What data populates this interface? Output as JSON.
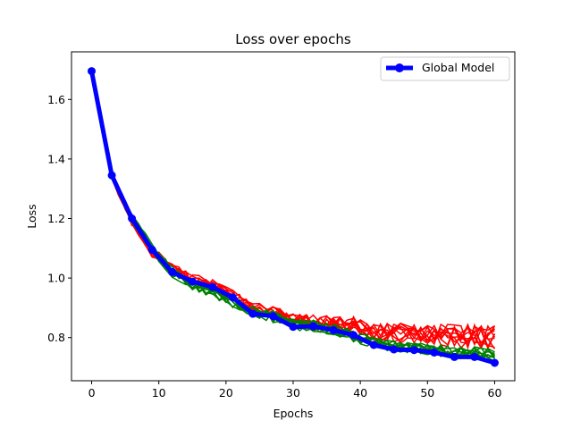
{
  "chart_data": {
    "type": "line",
    "title": "Loss over epochs",
    "xlabel": "Epochs",
    "ylabel": "Loss",
    "xlim": [
      -3,
      63
    ],
    "ylim": [
      0.655,
      1.76
    ],
    "xticks": [
      0,
      10,
      20,
      30,
      40,
      50,
      60
    ],
    "yticks": [
      0.8,
      1.0,
      1.2,
      1.4,
      1.6
    ],
    "ytick_labels": [
      "0.8",
      "1.0",
      "1.2",
      "1.4",
      "1.6"
    ],
    "grid": false,
    "legend": {
      "placement": "top-right",
      "entries": [
        "Global Model"
      ]
    },
    "colors": {
      "global": "#0000ff",
      "clients_a": "#ff0000",
      "clients_b": "#008000"
    },
    "series": [
      {
        "name": "Global Model",
        "color": "#0000ff",
        "marker": "circle",
        "x": [
          0,
          3,
          6,
          9,
          12,
          15,
          18,
          21,
          24,
          27,
          30,
          33,
          36,
          39,
          42,
          45,
          48,
          51,
          54,
          57,
          60
        ],
        "values": [
          1.695,
          1.345,
          1.2,
          1.095,
          1.02,
          0.988,
          0.97,
          0.935,
          0.88,
          0.872,
          0.836,
          0.838,
          0.825,
          0.808,
          0.775,
          0.76,
          0.758,
          0.75,
          0.735,
          0.735,
          0.715
        ]
      }
    ],
    "client_series": [
      {
        "group": "red",
        "color": "#ff0000",
        "count": 10,
        "x": [
          0,
          3,
          6,
          9,
          12,
          15,
          18,
          21,
          24,
          27,
          30,
          33,
          36,
          39,
          42,
          45,
          48,
          51,
          54,
          57,
          60
        ],
        "mean": [
          1.695,
          1.34,
          1.19,
          1.09,
          1.03,
          0.995,
          0.975,
          0.94,
          0.9,
          0.885,
          0.86,
          0.855,
          0.845,
          0.84,
          0.82,
          0.815,
          0.81,
          0.81,
          0.805,
          0.805,
          0.8
        ],
        "spread": [
          0.0,
          0.01,
          0.015,
          0.02,
          0.02,
          0.02,
          0.02,
          0.02,
          0.02,
          0.02,
          0.025,
          0.025,
          0.025,
          0.03,
          0.03,
          0.035,
          0.035,
          0.035,
          0.04,
          0.04,
          0.04
        ]
      },
      {
        "group": "green",
        "color": "#008000",
        "count": 10,
        "x": [
          0,
          3,
          6,
          9,
          12,
          15,
          18,
          21,
          24,
          27,
          30,
          33,
          36,
          39,
          42,
          45,
          48,
          51,
          54,
          57,
          60
        ],
        "mean": [
          1.695,
          1.345,
          1.2,
          1.1,
          1.02,
          0.98,
          0.955,
          0.92,
          0.89,
          0.87,
          0.845,
          0.84,
          0.825,
          0.805,
          0.785,
          0.77,
          0.765,
          0.76,
          0.75,
          0.75,
          0.74
        ],
        "spread": [
          0.0,
          0.01,
          0.015,
          0.02,
          0.02,
          0.02,
          0.02,
          0.02,
          0.02,
          0.02,
          0.02,
          0.02,
          0.02,
          0.02,
          0.02,
          0.02,
          0.02,
          0.02,
          0.02,
          0.02,
          0.02
        ]
      }
    ]
  }
}
